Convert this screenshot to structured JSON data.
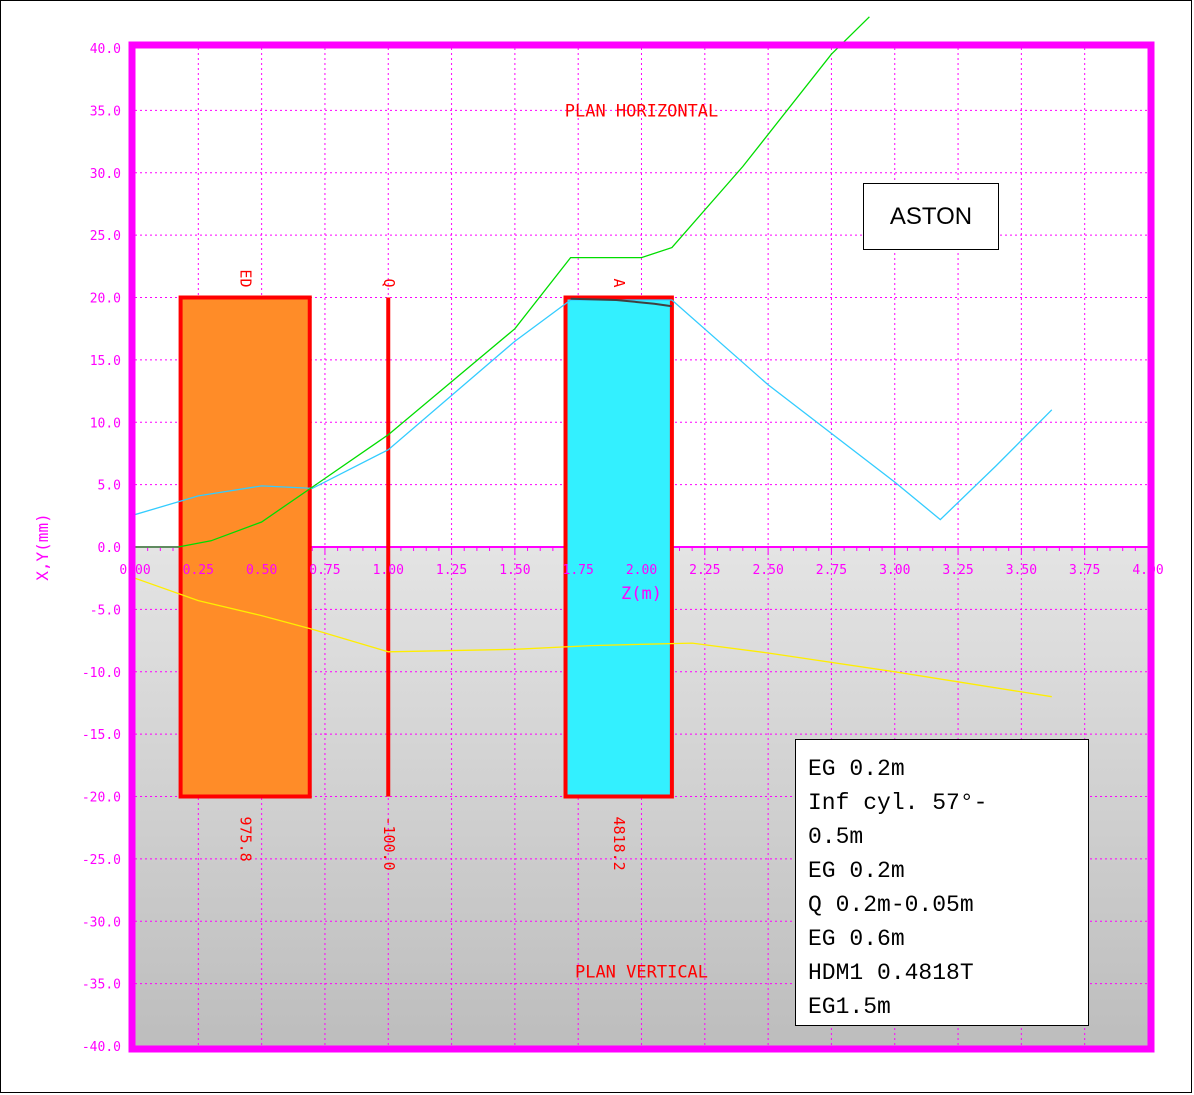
{
  "chart_data": {
    "type": "line",
    "xlabel": "Z(m)",
    "ylabel": "X,Y(mm)",
    "xlim": [
      0,
      4.0
    ],
    "ylim": [
      -40,
      40
    ],
    "x_ticks": [
      "0.00",
      "0.25",
      "0.50",
      "0.75",
      "1.00",
      "1.25",
      "1.50",
      "1.75",
      "2.00",
      "2.25",
      "2.50",
      "2.75",
      "3.00",
      "3.25",
      "3.50",
      "3.75",
      "4.00"
    ],
    "y_ticks": [
      "40.0",
      "35.0",
      "30.0",
      "25.0",
      "20.0",
      "15.0",
      "10.0",
      "5.0",
      "0.0",
      "-5.0",
      "-10.0",
      "-15.0",
      "-20.0",
      "-25.0",
      "-30.0",
      "-35.0",
      "-40.0"
    ],
    "grid": true,
    "region_labels": [
      {
        "text": "PLAN HORIZONTAL",
        "x": 2.0,
        "y": 34.5
      },
      {
        "text": "PLAN VERTICAL",
        "x": 2.0,
        "y": -34.5
      }
    ],
    "elements": [
      {
        "label": "ED",
        "value": "975.8",
        "z_start": 0.18,
        "z_end": 0.69,
        "half_aperture": 20,
        "fill": "#ff8c28"
      },
      {
        "label": "Q",
        "value": "-100.0",
        "z_start": 0.995,
        "z_end": 1.005,
        "half_aperture": 20,
        "fill": "#ff0000"
      },
      {
        "label": "A",
        "value": "4818.2",
        "z_start": 1.7,
        "z_end": 2.12,
        "half_aperture": 20,
        "fill": "#33f0ff"
      }
    ],
    "series": [
      {
        "color": "#33ccff",
        "x": [
          0.0,
          0.25,
          0.5,
          0.7,
          1.0,
          1.5,
          1.72,
          2.0,
          2.12,
          2.5,
          3.0,
          3.18,
          3.4,
          3.62
        ],
        "y": [
          2.6,
          4.1,
          4.9,
          4.7,
          7.8,
          16.5,
          19.8,
          19.8,
          19.8,
          13.0,
          5.2,
          2.2,
          6.5,
          11.0
        ]
      },
      {
        "color": "#00dd00",
        "x": [
          0.0,
          0.17,
          0.3,
          0.5,
          0.7,
          1.0,
          1.5,
          1.72,
          2.0,
          2.12,
          2.4,
          2.75,
          2.9
        ],
        "y": [
          0.0,
          0.0,
          0.5,
          2.0,
          4.8,
          9.0,
          17.5,
          23.2,
          23.2,
          24.0,
          30.5,
          39.5,
          42.5
        ]
      },
      {
        "color": "#404040",
        "x": [
          1.72,
          1.9,
          2.05,
          2.12
        ],
        "y": [
          19.9,
          19.8,
          19.5,
          19.3
        ]
      },
      {
        "color": "#ffee00",
        "x": [
          0.0,
          0.25,
          0.5,
          0.7,
          1.0,
          1.5,
          1.8,
          2.0,
          2.2,
          2.5,
          3.0,
          3.62
        ],
        "y": [
          -2.5,
          -4.3,
          -5.5,
          -6.6,
          -8.4,
          -8.2,
          -7.9,
          -7.8,
          -7.7,
          -8.5,
          -10.0,
          -12.0
        ]
      }
    ]
  },
  "annotations": {
    "aston": "ASTON",
    "settings_lines": [
      "EG 0.2m",
      "Inf cyl. 57°-",
      "0.5m",
      "EG 0.2m",
      "Q 0.2m-0.05m",
      "EG 0.6m",
      "HDM1 0.4818T",
      "EG1.5m"
    ]
  },
  "colors": {
    "frame": "#ff00ff",
    "grid": "#ff00ff",
    "lower_bg": "#d8d8d8",
    "element_outline": "#ff0000",
    "element_text": "#ff0000",
    "region_text": "#ff0000"
  }
}
